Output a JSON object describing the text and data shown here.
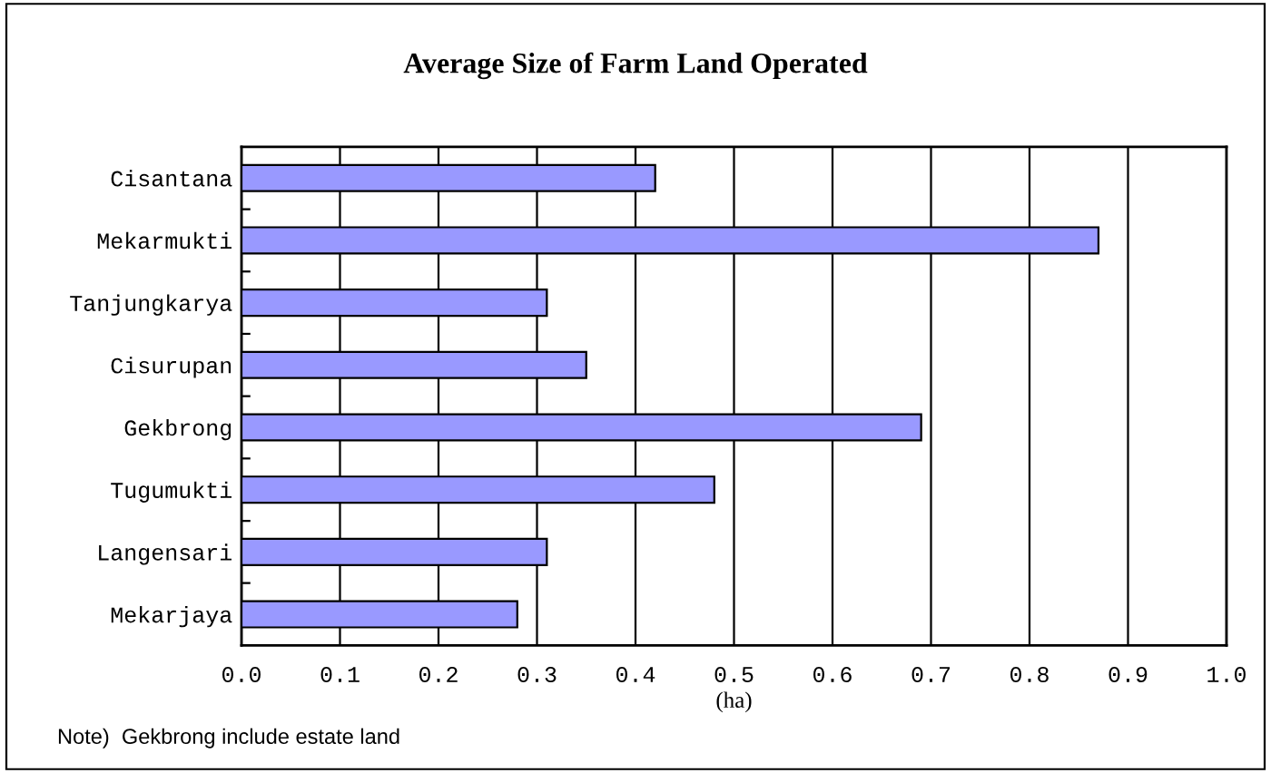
{
  "chart_data": {
    "type": "bar",
    "orientation": "horizontal",
    "title": "Average Size of Farm Land Operated",
    "xlabel": "(ha)",
    "categories": [
      "Cisantana",
      "Mekarmukti",
      "Tanjungkarya",
      "Cisurupan",
      "Gekbrong",
      "Tugumukti",
      "Langensari",
      "Mekarjaya"
    ],
    "values": [
      0.42,
      0.87,
      0.31,
      0.35,
      0.69,
      0.48,
      0.31,
      0.28
    ],
    "color": "#9999ff",
    "xlim": [
      0,
      1
    ],
    "xticks": [
      {
        "value": 0,
        "label": "0.0"
      },
      {
        "value": 0.1,
        "label": "0.1"
      },
      {
        "value": 0.2,
        "label": "0.2"
      },
      {
        "value": 0.3,
        "label": "0.3"
      },
      {
        "value": 0.4,
        "label": "0.4"
      },
      {
        "value": 0.5,
        "label": "0.5"
      },
      {
        "value": 0.6,
        "label": "0.6"
      },
      {
        "value": 0.7,
        "label": "0.7"
      },
      {
        "value": 0.8,
        "label": "0.8"
      },
      {
        "value": 0.9,
        "label": "0.9"
      },
      {
        "value": 1,
        "label": "1.0"
      }
    ],
    "grid": "x",
    "annotations": [
      "Note)  Gekbrong include estate land"
    ]
  }
}
